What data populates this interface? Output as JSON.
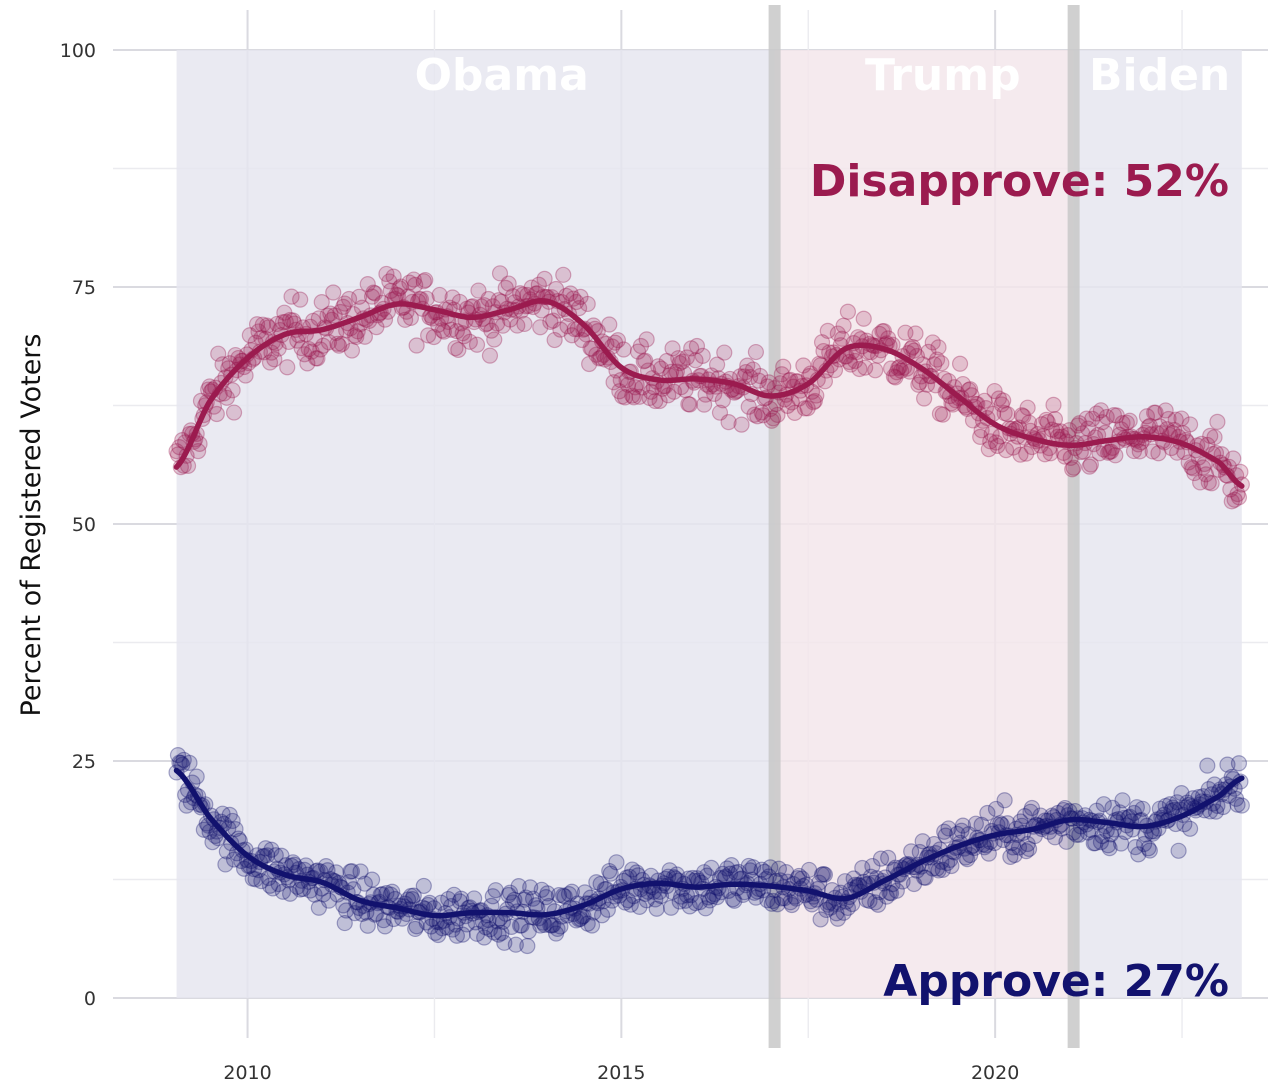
{
  "chart_data": {
    "type": "scatter",
    "title": "",
    "ylabel": "Percent of Registered Voters",
    "xlabel": "",
    "xlim": [
      2008.2,
      2023.65
    ],
    "ylim": [
      0,
      100
    ],
    "x_ticks": [
      2010,
      2015,
      2020
    ],
    "y_ticks": [
      0,
      25,
      50,
      75,
      100
    ],
    "grid": true,
    "eras": [
      {
        "name": "Obama",
        "start": 2009.05,
        "end": 2017.05,
        "color": "#e5e5ef"
      },
      {
        "name": "Trump",
        "start": 2017.05,
        "end": 2021.05,
        "color": "#f3e5ea"
      },
      {
        "name": "Biden",
        "start": 2021.05,
        "end": 2023.3,
        "color": "#e5e5ef"
      }
    ],
    "transitions": [
      2017.05,
      2021.05
    ],
    "annotations": {
      "disapprove": "Disapprove: 52%",
      "approve": "Approve: 27%"
    },
    "series": [
      {
        "name": "Disapprove",
        "color": "#9b1b4f",
        "trend": {
          "x": [
            2009.05,
            2009.5,
            2010.0,
            2010.5,
            2011.0,
            2011.5,
            2012.0,
            2012.5,
            2013.0,
            2013.5,
            2014.0,
            2014.5,
            2015.0,
            2015.5,
            2016.0,
            2016.5,
            2017.0,
            2017.5,
            2018.0,
            2018.5,
            2019.0,
            2019.5,
            2020.0,
            2020.5,
            2021.0,
            2021.5,
            2022.0,
            2022.5,
            2023.0,
            2023.3
          ],
          "y": [
            56,
            63,
            67.5,
            70,
            70.5,
            71.8,
            73.2,
            72.6,
            71.8,
            72.6,
            73.5,
            71,
            66.5,
            65.2,
            65.3,
            64.8,
            63.5,
            64.8,
            68.5,
            68.5,
            66.5,
            63.5,
            60.5,
            59,
            58.3,
            58.8,
            59.2,
            58.5,
            56.5,
            54
          ]
        }
      },
      {
        "name": "Approve",
        "color": "#12126e",
        "trend": {
          "x": [
            2009.05,
            2009.5,
            2010.0,
            2010.5,
            2011.0,
            2011.5,
            2012.0,
            2012.5,
            2013.0,
            2013.5,
            2014.0,
            2014.5,
            2015.0,
            2015.5,
            2016.0,
            2016.5,
            2017.0,
            2017.5,
            2018.0,
            2018.5,
            2019.0,
            2019.5,
            2020.0,
            2020.5,
            2021.0,
            2021.5,
            2022.0,
            2022.5,
            2023.0,
            2023.3
          ],
          "y": [
            24,
            19,
            15,
            13,
            12.2,
            10.3,
            9.5,
            8.7,
            9,
            9,
            8.8,
            9.8,
            11.5,
            12.1,
            11.7,
            12,
            11.8,
            11.3,
            10.5,
            12.3,
            14.3,
            16,
            17.2,
            17.8,
            18.8,
            18.5,
            18.1,
            19.2,
            21.3,
            23.2
          ]
        }
      }
    ]
  }
}
